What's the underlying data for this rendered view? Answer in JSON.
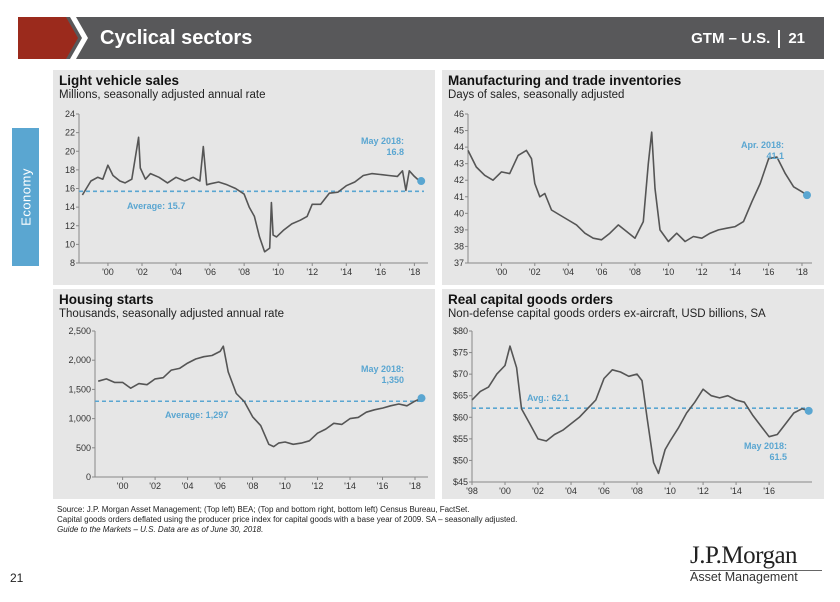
{
  "header": {
    "title": "Cyclical sectors",
    "gtm": "GTM – U.S.",
    "page": "21"
  },
  "side_tab": {
    "label": "Economy"
  },
  "colors": {
    "header_bg": "#58585a",
    "accent_red": "#9b2a1c",
    "accent_blue": "#5aa6d1",
    "line": "#555555",
    "panel_bg": "#e6e6e6"
  },
  "chart_data": [
    {
      "type": "line",
      "title": "Light vehicle sales",
      "subtitle": "Millions, seasonally adjusted annual rate",
      "xlim": [
        1998.3,
        2018.8
      ],
      "ylim": [
        8,
        24
      ],
      "yticks": [
        "8",
        "10",
        "12",
        "14",
        "16",
        "18",
        "20",
        "22",
        "24"
      ],
      "xticks": [
        "'00",
        "'02",
        "'04",
        "'06",
        "'08",
        "'10",
        "'12",
        "'14",
        "'16",
        "'18"
      ],
      "x": [
        1998.5,
        1999,
        1999.4,
        1999.7,
        2000,
        2000.3,
        2000.7,
        2001,
        2001.4,
        2001.8,
        2001.9,
        2002.2,
        2002.5,
        2003,
        2003.5,
        2004,
        2004.5,
        2005,
        2005.4,
        2005.6,
        2005.8,
        2006,
        2006.5,
        2007,
        2007.5,
        2008,
        2008.3,
        2008.6,
        2008.9,
        2009.2,
        2009.5,
        2009.6,
        2009.7,
        2009.9,
        2010.3,
        2010.8,
        2011.3,
        2011.7,
        2012,
        2012.5,
        2013,
        2013.5,
        2014,
        2014.5,
        2015,
        2015.5,
        2016,
        2016.5,
        2017,
        2017.3,
        2017.5,
        2017.7,
        2018,
        2018.3,
        2018.4
      ],
      "values": [
        15.3,
        16.8,
        17.2,
        17.0,
        18.5,
        17.4,
        16.8,
        16.6,
        17.0,
        21.5,
        18.2,
        17.0,
        17.6,
        17.2,
        16.6,
        17.2,
        16.8,
        17.2,
        16.8,
        20.5,
        16.4,
        16.5,
        16.7,
        16.4,
        16.0,
        15.4,
        14.0,
        13.0,
        10.8,
        9.2,
        9.6,
        14.5,
        11.0,
        10.8,
        11.5,
        12.2,
        12.6,
        13.0,
        14.3,
        14.3,
        15.5,
        15.6,
        16.3,
        16.7,
        17.4,
        17.6,
        17.5,
        17.4,
        17.3,
        17.9,
        15.8,
        17.9,
        17.3,
        16.8,
        16.8
      ],
      "average": {
        "value": 15.7,
        "label": "Average: 15.7"
      },
      "latest": {
        "label_line1": "May 2018:",
        "label_line2": "16.8",
        "x": 2018.4,
        "value": 16.8
      }
    },
    {
      "type": "line",
      "title": "Manufacturing and trade inventories",
      "subtitle": "Days of sales, seasonally adjusted",
      "xlim": [
        1998.0,
        2018.6
      ],
      "ylim": [
        37,
        46
      ],
      "yticks": [
        "37",
        "38",
        "39",
        "40",
        "41",
        "42",
        "43",
        "44",
        "45",
        "46"
      ],
      "xticks": [
        "'00",
        "'02",
        "'04",
        "'06",
        "'08",
        "'10",
        "'12",
        "'14",
        "'16",
        "'18"
      ],
      "x": [
        1998.0,
        1998.5,
        1999,
        1999.5,
        2000,
        2000.5,
        2001,
        2001.5,
        2001.8,
        2002,
        2002.3,
        2002.6,
        2003,
        2003.5,
        2004,
        2004.5,
        2005,
        2005.5,
        2006,
        2006.5,
        2007,
        2007.5,
        2008,
        2008.5,
        2008.8,
        2009,
        2009.2,
        2009.5,
        2010,
        2010.5,
        2011,
        2011.5,
        2012,
        2012.5,
        2013,
        2013.5,
        2014,
        2014.5,
        2015,
        2015.5,
        2016,
        2016.5,
        2017,
        2017.5,
        2018,
        2018.3
      ],
      "values": [
        43.8,
        42.8,
        42.3,
        42.0,
        42.5,
        42.4,
        43.5,
        43.8,
        43.3,
        41.8,
        41.0,
        41.2,
        40.2,
        39.9,
        39.6,
        39.3,
        38.8,
        38.5,
        38.4,
        38.8,
        39.3,
        38.9,
        38.5,
        39.5,
        43.0,
        44.9,
        41.5,
        39.0,
        38.3,
        38.8,
        38.3,
        38.6,
        38.5,
        38.8,
        39.0,
        39.1,
        39.2,
        39.5,
        40.7,
        41.8,
        43.3,
        43.4,
        42.4,
        41.6,
        41.3,
        41.1
      ],
      "latest": {
        "label_line1": "Apr. 2018:",
        "label_line2": "41.1",
        "x": 2018.3,
        "value": 41.1
      }
    },
    {
      "type": "line",
      "title": "Housing starts",
      "subtitle": "Thousands, seasonally adjusted annual rate",
      "xlim": [
        1998.3,
        2018.8
      ],
      "ylim": [
        0,
        2500
      ],
      "yticks": [
        "0",
        "500",
        "1,000",
        "1,500",
        "2,000",
        "2,500"
      ],
      "xticks": [
        "'00",
        "'02",
        "'04",
        "'06",
        "'08",
        "'10",
        "'12",
        "'14",
        "'16",
        "'18"
      ],
      "x": [
        1998.5,
        1999,
        1999.5,
        2000,
        2000.5,
        2001,
        2001.5,
        2002,
        2002.5,
        2003,
        2003.5,
        2004,
        2004.5,
        2005,
        2005.5,
        2006,
        2006.2,
        2006.5,
        2007,
        2007.5,
        2008,
        2008.5,
        2009,
        2009.3,
        2009.6,
        2010,
        2010.5,
        2011,
        2011.5,
        2012,
        2012.5,
        2013,
        2013.5,
        2014,
        2014.5,
        2015,
        2015.5,
        2016,
        2016.5,
        2017,
        2017.5,
        2018,
        2018.4
      ],
      "values": [
        1640,
        1680,
        1620,
        1620,
        1520,
        1600,
        1580,
        1680,
        1700,
        1830,
        1860,
        1950,
        2020,
        2060,
        2080,
        2150,
        2240,
        1800,
        1430,
        1290,
        1030,
        880,
        560,
        520,
        580,
        600,
        560,
        580,
        620,
        750,
        820,
        920,
        900,
        1000,
        1020,
        1110,
        1150,
        1180,
        1220,
        1250,
        1220,
        1300,
        1350
      ],
      "average": {
        "value": 1297,
        "label": "Average: 1,297"
      },
      "latest": {
        "label_line1": "May 2018:",
        "label_line2": "1,350",
        "x": 2018.4,
        "value": 1350
      }
    },
    {
      "type": "line",
      "title": "Real capital goods orders",
      "subtitle": "Non-defense capital goods orders ex-aircraft, USD billions, SA",
      "xlim": [
        1998.0,
        2018.6
      ],
      "ylim": [
        45,
        80
      ],
      "yticks": [
        "$45",
        "$50",
        "$55",
        "$60",
        "$65",
        "$70",
        "$75",
        "$80"
      ],
      "xticks": [
        "'98",
        "'00",
        "'02",
        "'04",
        "'06",
        "'08",
        "'10",
        "'12",
        "'14",
        "'16"
      ],
      "x": [
        1998.0,
        1998.5,
        1999,
        1999.5,
        2000,
        2000.3,
        2000.7,
        2001,
        2001.5,
        2002,
        2002.5,
        2003,
        2003.5,
        2004,
        2004.5,
        2005,
        2005.5,
        2006,
        2006.5,
        2007,
        2007.5,
        2008,
        2008.3,
        2008.6,
        2009,
        2009.3,
        2009.7,
        2010,
        2010.5,
        2011,
        2011.5,
        2012,
        2012.5,
        2013,
        2013.5,
        2014,
        2014.5,
        2015,
        2015.5,
        2016,
        2016.5,
        2017,
        2017.5,
        2018,
        2018.4
      ],
      "values": [
        64.0,
        66.0,
        67.0,
        70.0,
        72.0,
        76.5,
        71.5,
        62.0,
        58.5,
        55.0,
        54.5,
        56.0,
        57.0,
        58.5,
        60.0,
        62.0,
        64.0,
        69.0,
        71.0,
        70.5,
        69.5,
        70.0,
        68.5,
        60.0,
        49.5,
        47.0,
        52.5,
        54.5,
        57.5,
        61.0,
        63.5,
        66.5,
        65.0,
        64.5,
        65.0,
        64.0,
        63.5,
        60.5,
        58.0,
        55.5,
        56.0,
        58.5,
        61.0,
        62.0,
        61.5
      ],
      "average": {
        "value": 62.1,
        "label": "Avg.: 62.1"
      },
      "latest": {
        "label_line1": "May 2018:",
        "label_line2": "61.5",
        "x": 2018.4,
        "value": 61.5
      }
    }
  ],
  "footnotes": [
    "Source: J.P. Morgan Asset Management; (Top left) BEA; (Top and bottom right, bottom left) Census Bureau, FactSet.",
    "Capital goods orders deflated using the producer price index for capital goods with a base year of 2009. SA – seasonally adjusted.",
    "Guide to the Markets – U.S. Data are as of June 30, 2018."
  ],
  "page_number": "21",
  "logo": {
    "line1": "J.P.Morgan",
    "line2": "Asset Management"
  }
}
